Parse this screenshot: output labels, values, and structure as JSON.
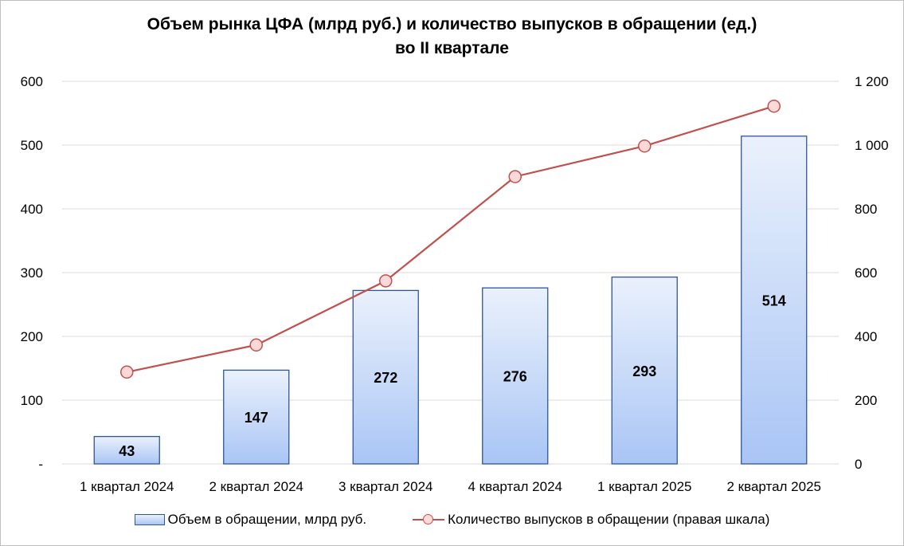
{
  "chart_data": {
    "type": "bar+line",
    "title": [
      "Объем рынка ЦФА (млрд руб.) и количество выпусков в обращении (ед.)",
      "во II квартале"
    ],
    "categories": [
      "1 квартал 2024",
      "2 квартал 2024",
      "3 квартал 2024",
      "4 квартал 2024",
      "1 квартал 2025",
      "2 квартал 2025"
    ],
    "series": [
      {
        "name": "Объем в обращении, млрд руб.",
        "type": "bar",
        "axis": "left",
        "values": [
          43,
          147,
          272,
          276,
          293,
          514
        ],
        "data_labels": [
          "43",
          "147",
          "272",
          "276",
          "293",
          "514"
        ],
        "color": "#2f5597"
      },
      {
        "name": "Количество выпусков в обращении (правая шкала)",
        "type": "line",
        "axis": "right",
        "values": [
          288,
          373,
          574,
          901,
          997,
          1122
        ],
        "color": "#c0504d"
      }
    ],
    "y_left": {
      "range": [
        0,
        600
      ],
      "ticks": [
        0,
        100,
        200,
        300,
        400,
        500,
        600
      ],
      "tick_labels": [
        "-",
        "100",
        "200",
        "300",
        "400",
        "500",
        "600"
      ]
    },
    "y_right": {
      "range": [
        0,
        1200
      ],
      "ticks": [
        0,
        200,
        400,
        600,
        800,
        1000,
        1200
      ],
      "tick_labels": [
        "0",
        "200",
        "400",
        "600",
        "800",
        "1 000",
        "1 200"
      ]
    },
    "grid": true,
    "legend_position": "bottom"
  }
}
